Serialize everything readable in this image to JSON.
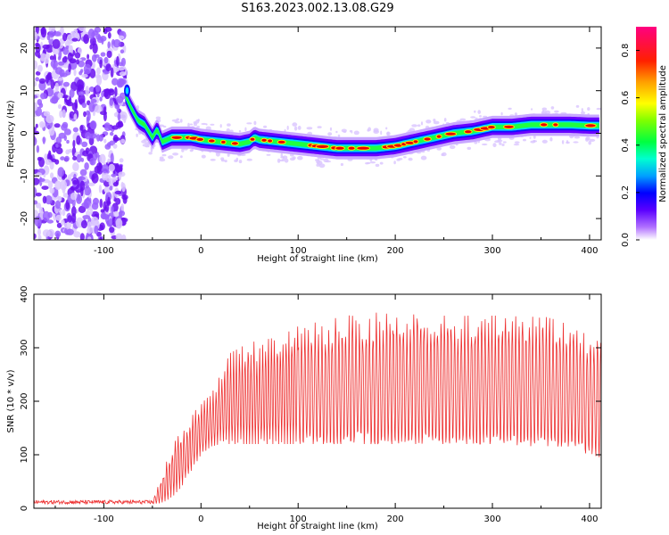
{
  "title": "S163.2023.002.13.08.G29",
  "chart_data": [
    {
      "type": "heatmap",
      "xlabel": "Height of straight line (km)",
      "ylabel": "Frequency (Hz)",
      "xlim": [
        -172,
        412
      ],
      "ylim": [
        -25,
        25
      ],
      "x_ticks": [
        -100,
        0,
        100,
        200,
        300,
        400
      ],
      "y_ticks": [
        -20,
        -10,
        0,
        10,
        20
      ],
      "noise_region_x": [
        -172,
        -78
      ],
      "ridge": {
        "x": [
          -78,
          -72,
          -65,
          -58,
          -50,
          -45,
          -40,
          -30,
          -20,
          -10,
          0,
          20,
          40,
          50,
          55,
          60,
          80,
          100,
          120,
          140,
          160,
          180,
          200,
          220,
          240,
          260,
          280,
          300,
          320,
          340,
          360,
          380,
          400,
          410
        ],
        "y": [
          9,
          6,
          3,
          2,
          -1,
          1,
          -2,
          -1,
          -1,
          -1,
          -1.5,
          -2,
          -2.5,
          -2,
          -1,
          -1.5,
          -2,
          -2.5,
          -3,
          -3.5,
          -3.5,
          -3.5,
          -3,
          -2,
          -1,
          0,
          0.5,
          1.5,
          1.5,
          2,
          2,
          2,
          1.8,
          1.8
        ]
      },
      "colorbar": {
        "label": "Normalized spectral amplitude",
        "range": [
          0,
          0.9
        ],
        "ticks": [
          "0.0",
          "0.2",
          "0.4",
          "0.6",
          "0.8"
        ]
      }
    },
    {
      "type": "line",
      "xlabel": "Height of straight line (km)",
      "ylabel": "SNR (10 * v/v)",
      "xlim": [
        -172,
        412
      ],
      "ylim": [
        0,
        400
      ],
      "x_ticks": [
        -100,
        0,
        100,
        200,
        300,
        400
      ],
      "y_ticks": [
        0,
        100,
        200,
        300,
        400
      ],
      "color": "#ee3030",
      "upper_envelope": {
        "x": [
          -172,
          -50,
          -40,
          -30,
          -20,
          -10,
          0,
          10,
          20,
          30,
          50,
          80,
          100,
          150,
          200,
          250,
          300,
          350,
          380,
          400,
          410
        ],
        "y": [
          15,
          15,
          60,
          120,
          150,
          170,
          200,
          210,
          250,
          290,
          310,
          320,
          340,
          360,
          370,
          360,
          360,
          360,
          345,
          320,
          320
        ]
      },
      "lower_envelope": {
        "x": [
          -172,
          -50,
          -40,
          -30,
          -20,
          -10,
          0,
          10,
          20,
          30,
          50,
          100,
          150,
          200,
          250,
          300,
          350,
          380,
          400,
          410
        ],
        "y": [
          8,
          8,
          10,
          20,
          40,
          70,
          100,
          115,
          120,
          120,
          120,
          120,
          120,
          120,
          120,
          120,
          115,
          110,
          100,
          95
        ]
      }
    }
  ]
}
